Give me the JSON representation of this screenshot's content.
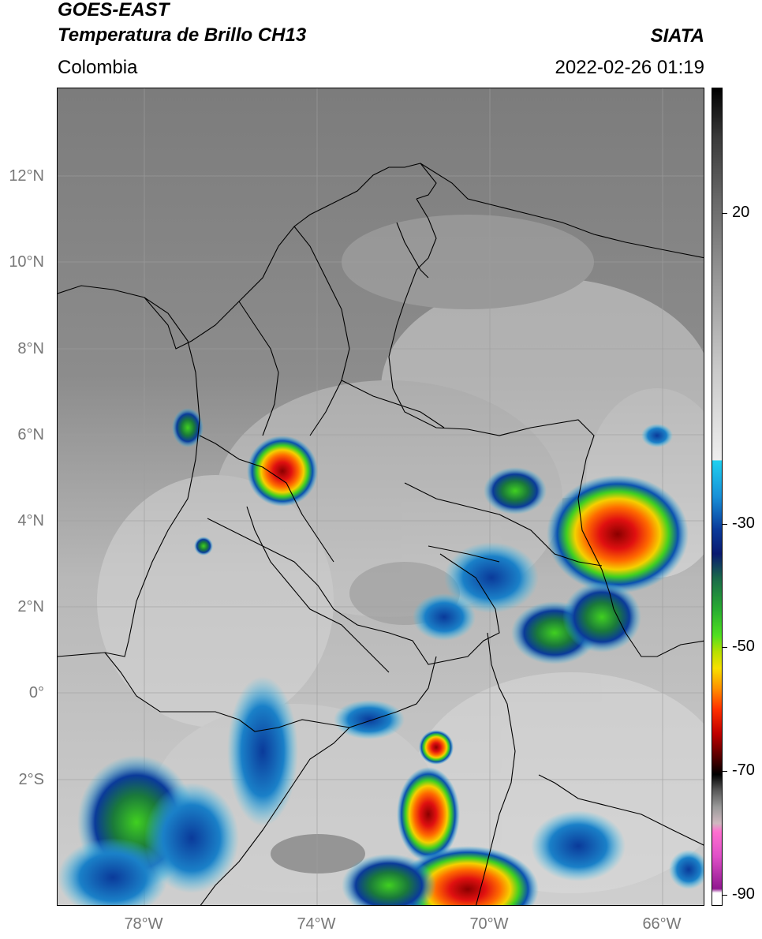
{
  "header": {
    "satellite": "GOES-EAST",
    "product": "Temperatura de Brillo CH13",
    "region": "Colombia",
    "organization": "SIATA",
    "datetime": "2022-02-26 01:19"
  },
  "map": {
    "lat_labels": [
      "12°N",
      "10°N",
      "8°N",
      "6°N",
      "4°N",
      "2°N",
      "0°",
      "2°S"
    ],
    "lon_labels": [
      "78°W",
      "74°W",
      "70°W",
      "66°W"
    ],
    "lon_range": [
      -80,
      -65
    ],
    "lat_range": [
      -5,
      14
    ]
  },
  "colorbar": {
    "labels": [
      "20",
      "-30",
      "-50",
      "-70",
      "-90"
    ],
    "range": [
      -92,
      35
    ]
  }
}
